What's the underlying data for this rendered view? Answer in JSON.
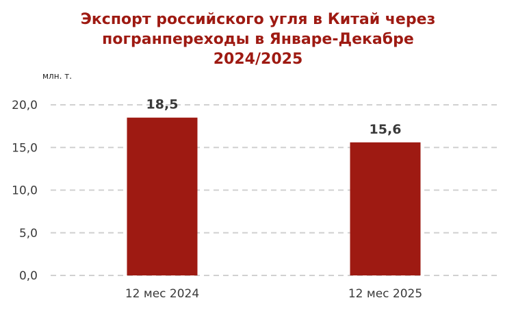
{
  "title_lines": [
    "Экспорт российского угля в Китай через",
    "погранпереходы в Январе-Декабре",
    "2024/2025"
  ],
  "unit_label": "млн. т.",
  "colors": {
    "title": "#9e1a12",
    "bar": "#9e1a12",
    "grid": "#d0d0d0",
    "text": "#3a3a3a"
  },
  "chart_data": {
    "type": "bar",
    "title": "Экспорт российского угля в Китай через погранпереходы в Январе-Декабре 2024/2025",
    "ylabel": "млн. т.",
    "categories": [
      "12 мес 2024",
      "12 мес 2025"
    ],
    "values": [
      18.5,
      15.6
    ],
    "value_labels": [
      "18,5",
      "15,6"
    ],
    "ylim": [
      0,
      20
    ],
    "yticks": [
      0,
      5,
      10,
      15,
      20
    ],
    "ytick_labels": [
      "0,0",
      "5,0",
      "10,0",
      "15,0",
      "20,0"
    ],
    "grid": true,
    "grid_style": "dashed",
    "legend": "none"
  }
}
